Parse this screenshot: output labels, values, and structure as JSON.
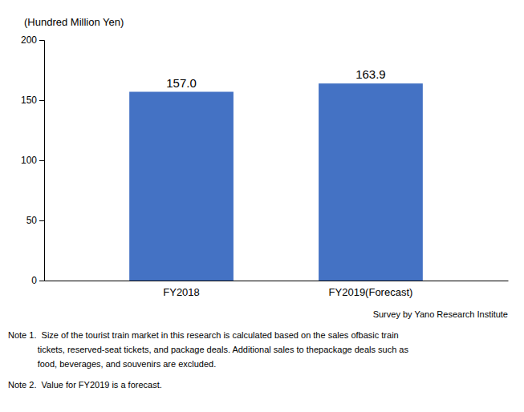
{
  "chart_data": {
    "type": "bar",
    "y_label": "(Hundred Million Yen)",
    "categories": [
      "FY2018",
      "FY2019(Forecast)"
    ],
    "values": [
      157.0,
      163.9
    ],
    "value_labels": [
      "157.0",
      "163.9"
    ],
    "data_labels": true,
    "color": "#4472C4",
    "ylim": [
      0,
      200
    ],
    "yticks": [
      0,
      50,
      100,
      150,
      200
    ],
    "grid": false,
    "annotations": [
      "Survey by Yano Research Institute",
      "Note 1.  Size of the tourist train market in this research is calculated based on the sales ofbasic train",
      "            tickets, reserved-seat tickets, and package deals. Additional sales to thepackage deals such as",
      "            food, beverages, and souvenirs are excluded.",
      "Note 2.  Value for FY2019 is a forecast."
    ]
  }
}
